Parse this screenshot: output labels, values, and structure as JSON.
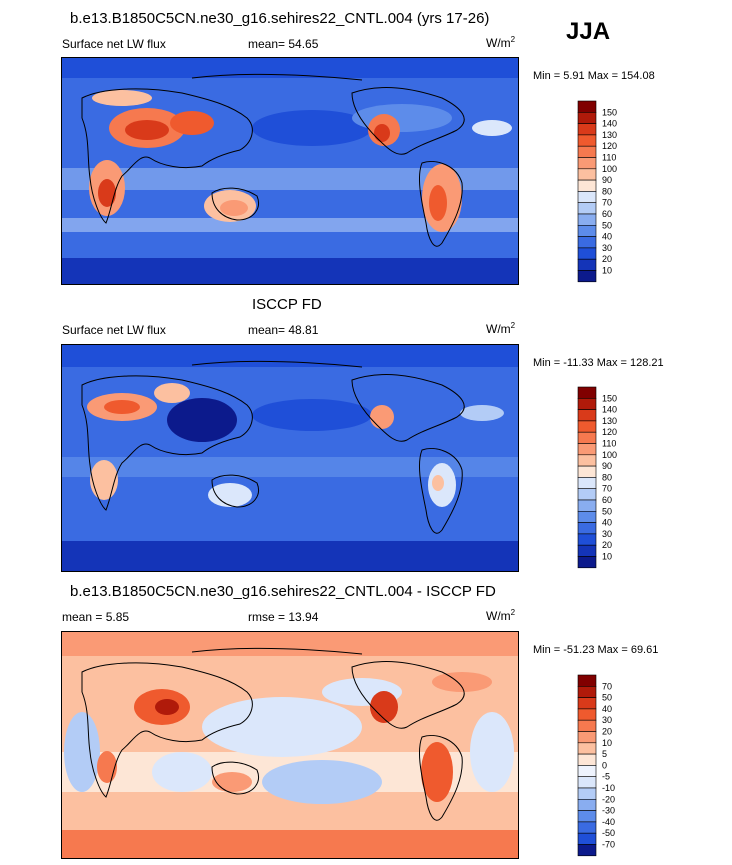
{
  "season": "JJA",
  "panels": [
    {
      "title": "b.e13.B1850C5CN.ne30_g16.sehires22_CNTL.004 (yrs 17-26)",
      "left_label": "Surface net LW flux",
      "center_label": "mean=  54.65",
      "units": "W/m",
      "units_exp": "2",
      "minmax": "Min =   5.91 Max = 154.08",
      "colorbar_labels": [
        "150",
        "140",
        "130",
        "120",
        "110",
        "100",
        "90",
        "80",
        "70",
        "60",
        "50",
        "40",
        "30",
        "20",
        "10"
      ],
      "palette": "abs"
    },
    {
      "title": "ISCCP FD",
      "left_label": "Surface net LW flux",
      "center_label": "mean=  48.81",
      "units": "W/m",
      "units_exp": "2",
      "minmax": "Min = -11.33 Max = 128.21",
      "colorbar_labels": [
        "150",
        "140",
        "130",
        "120",
        "110",
        "100",
        "90",
        "80",
        "70",
        "60",
        "50",
        "40",
        "30",
        "20",
        "10"
      ],
      "palette": "abs"
    },
    {
      "title": "b.e13.B1850C5CN.ne30_g16.sehires22_CNTL.004 - ISCCP FD",
      "left_label": "mean =   5.85",
      "center_label": "rmse =  13.94",
      "units": "W/m",
      "units_exp": "2",
      "minmax": "Min = -51.23 Max =  69.61",
      "colorbar_labels": [
        "70",
        "50",
        "40",
        "30",
        "20",
        "10",
        "5",
        "0",
        "-5",
        "-10",
        "-20",
        "-30",
        "-40",
        "-50",
        "-70"
      ],
      "palette": "diff"
    }
  ],
  "colors": {
    "abs": [
      "#800000",
      "#b01a0a",
      "#d93a1a",
      "#ef5a2e",
      "#f6794f",
      "#fa9a75",
      "#fcc0a0",
      "#fde6d6",
      "#dbe7fb",
      "#b3ccf6",
      "#89adf0",
      "#5d8cea",
      "#3a6be2",
      "#1f4fd8",
      "#1434b8",
      "#0c1a8c"
    ],
    "diff": [
      "#800000",
      "#b01a0a",
      "#d93a1a",
      "#ef5a2e",
      "#f6794f",
      "#fa9a75",
      "#fcc0a0",
      "#fde6d6",
      "#eef3fd",
      "#dbe7fb",
      "#b3ccf6",
      "#89adf0",
      "#5d8cea",
      "#3a6be2",
      "#1f4fd8",
      "#0c1a8c"
    ]
  }
}
